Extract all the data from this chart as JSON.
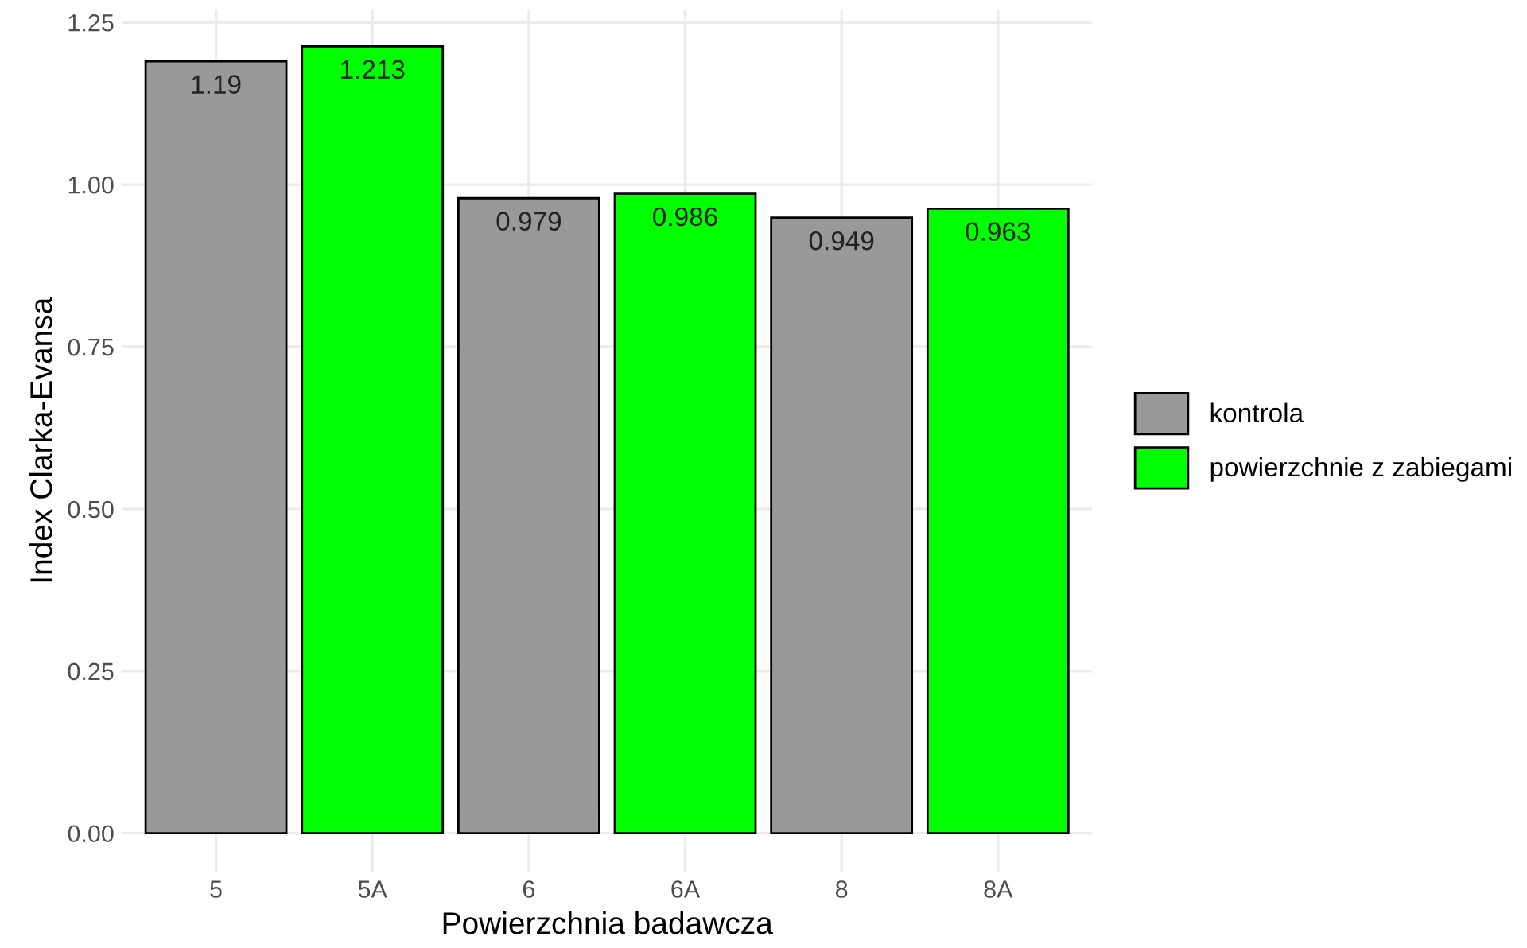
{
  "chart_data": {
    "type": "bar",
    "xlabel": "Powierzchnia badawcza",
    "ylabel": "Index Clarka-Evansa",
    "categories": [
      "5",
      "5A",
      "6",
      "6A",
      "8",
      "8A"
    ],
    "series": [
      {
        "name": "kontrola",
        "color": "#999999",
        "values": [
          1.19,
          null,
          0.979,
          null,
          0.949,
          null
        ]
      },
      {
        "name": "powierzchnie z zabiegami",
        "color": "#00ff00",
        "values": [
          null,
          1.213,
          null,
          0.986,
          null,
          0.963
        ]
      }
    ],
    "ylim": [
      -0.06,
      1.27
    ],
    "yticks": [
      {
        "value": 0,
        "label": "0.00"
      },
      {
        "value": 0.25,
        "label": "0.25"
      },
      {
        "value": 0.5,
        "label": "0.50"
      },
      {
        "value": 0.75,
        "label": "0.75"
      },
      {
        "value": 1,
        "label": "1.00"
      },
      {
        "value": 1.25,
        "label": "1.25"
      }
    ],
    "grid": true,
    "legend": "right",
    "data_labels": true
  }
}
